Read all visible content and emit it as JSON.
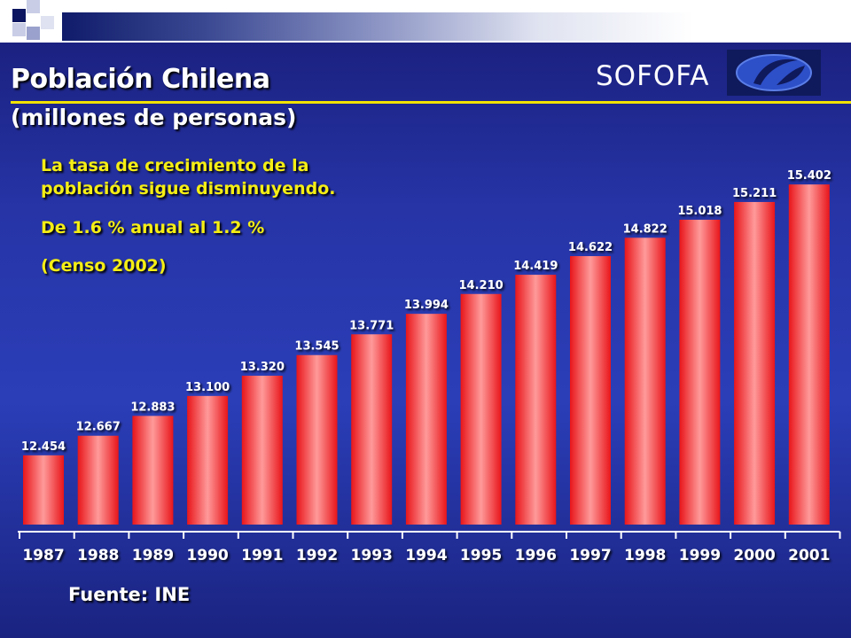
{
  "slide": {
    "title": "Población Chilena",
    "subtitle": "(millones de personas)",
    "brand": "SOFOFA",
    "annotation": {
      "line1": "La tasa de crecimiento de la",
      "line2": "población sigue disminuyendo.",
      "line3": "De  1.6 % anual al 1.2 %",
      "line4": "(Censo 2002)"
    },
    "source": "Fuente: INE"
  },
  "colors": {
    "bar_center": "#ff8e8e",
    "bar_edge": "#e8151a",
    "value_label": "#ffffff",
    "axis": "#ffffff"
  },
  "chart_data": {
    "type": "bar",
    "categories": [
      "1987",
      "1988",
      "1989",
      "1990",
      "1991",
      "1992",
      "1993",
      "1994",
      "1995",
      "1996",
      "1997",
      "1998",
      "1999",
      "2000",
      "2001"
    ],
    "values": [
      12.454,
      12.667,
      12.883,
      13.1,
      13.32,
      13.545,
      13.771,
      13.994,
      14.21,
      14.419,
      14.622,
      14.822,
      15.018,
      15.211,
      15.402
    ],
    "value_labels": [
      "12.454",
      "12.667",
      "12.883",
      "13.100",
      "13.320",
      "13.545",
      "13.771",
      "13.994",
      "14.210",
      "14.419",
      "14.622",
      "14.822",
      "15.018",
      "15.211",
      "15.402"
    ],
    "title": "Población Chilena",
    "subtitle": "(millones de personas)",
    "xlabel": "",
    "ylabel": "",
    "ylim": [
      11.7,
      15.5
    ],
    "grid": false,
    "legend": "none"
  }
}
